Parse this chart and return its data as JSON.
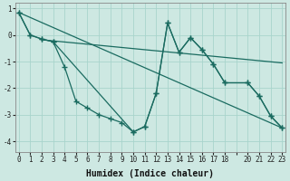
{
  "xlabel": "Humidex (Indice chaleur)",
  "bg_color": "#cde8e2",
  "line_color": "#1a6b60",
  "grid_color": "#a8d4cc",
  "ylim": [
    -4.4,
    1.2
  ],
  "xlim": [
    -0.3,
    23.3
  ],
  "yticks": [
    1,
    0,
    -1,
    -2,
    -3,
    -4
  ],
  "xticks": [
    0,
    1,
    2,
    3,
    4,
    5,
    6,
    7,
    8,
    9,
    10,
    11,
    12,
    13,
    14,
    15,
    16,
    17,
    18,
    19,
    20,
    21,
    22,
    23
  ],
  "xtick_labels": [
    "0",
    "1",
    "2",
    "3",
    "4",
    "5",
    "6",
    "7",
    "8",
    "9",
    "10",
    "11",
    "12",
    "13",
    "14",
    "15",
    "16",
    "17",
    "18",
    "",
    "20",
    "21",
    "22",
    "23"
  ],
  "series": [
    {
      "x": [
        0,
        1,
        2,
        3,
        4,
        5,
        6,
        7,
        8,
        9,
        10,
        11,
        12,
        13,
        14,
        15,
        16,
        17,
        18,
        20,
        21,
        22,
        23
      ],
      "y": [
        0.85,
        0.0,
        -0.15,
        -0.25,
        -1.2,
        -2.5,
        -2.75,
        -3.0,
        -3.15,
        -3.3,
        -3.65,
        -3.45,
        -2.2,
        0.45,
        -0.65,
        -0.1,
        -0.55,
        -1.1,
        -1.8,
        -1.8,
        -2.3,
        -3.05,
        -3.5
      ],
      "markers": true
    },
    {
      "x": [
        0,
        1,
        2,
        3,
        10,
        11,
        12,
        13,
        14,
        15,
        16,
        17,
        18,
        20,
        21,
        22,
        23
      ],
      "y": [
        0.85,
        0.0,
        -0.15,
        -0.25,
        -3.65,
        -3.45,
        -2.2,
        0.45,
        -0.65,
        -0.1,
        -0.55,
        -1.1,
        -1.8,
        -1.8,
        -2.3,
        -3.05,
        -3.5
      ],
      "markers": true
    },
    {
      "x": [
        0,
        23
      ],
      "y": [
        0.85,
        -3.5
      ],
      "markers": false
    },
    {
      "x": [
        2,
        23
      ],
      "y": [
        -0.18,
        -1.05
      ],
      "markers": false
    }
  ]
}
